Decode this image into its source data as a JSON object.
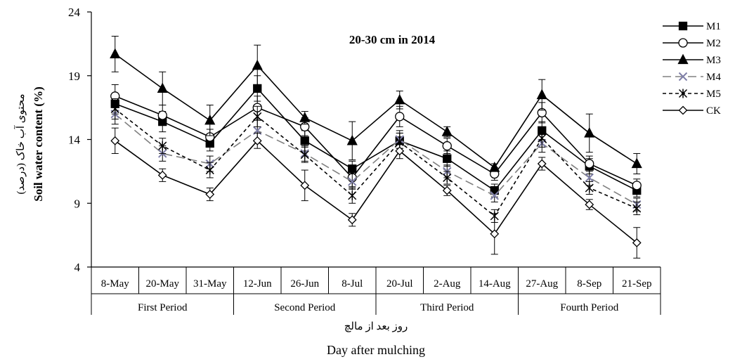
{
  "chart_data": {
    "type": "line",
    "title": "20-30 cm in 2014",
    "ylabel_fa": "محتوی آب خاک (درصد)",
    "ylabel": "Soil water content (%)",
    "xlabel_fa": "روز بعد از مالچ",
    "xlabel": "Day after mulching",
    "ylim": [
      4,
      24
    ],
    "yticks": [
      4,
      9,
      14,
      19,
      24
    ],
    "legend_position": "top-right",
    "grid": false,
    "categories": [
      "8-May",
      "20-May",
      "31-May",
      "12-Jun",
      "26-Jun",
      "8-Jul",
      "20-Jul",
      "2-Aug",
      "14-Aug",
      "27-Aug",
      "8-Sep",
      "21-Sep"
    ],
    "groups": [
      {
        "label": "First Period",
        "count": 3
      },
      {
        "label": "Second Period",
        "count": 3
      },
      {
        "label": "Third Period",
        "count": 3
      },
      {
        "label": "Fourth Period",
        "count": 3
      }
    ],
    "series": [
      {
        "name": "M1",
        "marker": "square",
        "dash": "solid",
        "color": "#000000",
        "values": [
          16.8,
          15.4,
          13.7,
          18.0,
          13.9,
          11.7,
          13.9,
          12.5,
          10.0,
          14.7,
          11.9,
          10.0
        ],
        "errors": [
          0.8,
          0.8,
          0.6,
          1.0,
          0.8,
          0.6,
          0.6,
          0.6,
          0.5,
          0.7,
          0.6,
          0.5
        ]
      },
      {
        "name": "M2",
        "marker": "circle",
        "dash": "solid",
        "color": "#000000",
        "values": [
          17.4,
          15.9,
          14.2,
          16.5,
          15.0,
          11.0,
          15.8,
          13.5,
          11.3,
          16.1,
          12.1,
          10.4
        ],
        "errors": [
          0.9,
          0.8,
          0.6,
          0.9,
          0.7,
          0.7,
          0.8,
          0.6,
          0.5,
          0.8,
          0.6,
          0.5
        ]
      },
      {
        "name": "M3",
        "marker": "triangle",
        "dash": "solid",
        "color": "#000000",
        "values": [
          20.7,
          18.0,
          15.5,
          19.8,
          15.7,
          13.9,
          17.1,
          14.6,
          11.8,
          17.5,
          14.5,
          12.1
        ],
        "errors": [
          1.4,
          1.3,
          1.2,
          1.6,
          0.5,
          1.5,
          0.7,
          0.4,
          0.3,
          1.2,
          1.5,
          0.8
        ]
      },
      {
        "name": "M4",
        "marker": "x",
        "dash": "longdash",
        "color": "#808080",
        "values": [
          16.0,
          12.9,
          12.1,
          14.7,
          12.9,
          10.7,
          14.0,
          11.5,
          9.6,
          13.7,
          11.0,
          8.9
        ],
        "errors": [
          0.8,
          0.6,
          0.6,
          0.8,
          0.6,
          0.6,
          0.7,
          0.5,
          0.5,
          0.7,
          0.6,
          0.5
        ]
      },
      {
        "name": "M5",
        "marker": "asterisk",
        "dash": "shortdash",
        "color": "#000000",
        "values": [
          16.4,
          13.5,
          11.6,
          15.8,
          12.8,
          9.6,
          13.8,
          11.0,
          8.0,
          14.1,
          10.2,
          8.6
        ],
        "errors": [
          0.8,
          0.6,
          0.6,
          0.8,
          0.6,
          0.6,
          0.7,
          0.5,
          0.5,
          0.7,
          0.5,
          0.5
        ]
      },
      {
        "name": "CK",
        "marker": "diamond",
        "dash": "solid",
        "color": "#000000",
        "values": [
          13.9,
          11.2,
          9.7,
          13.9,
          10.4,
          7.7,
          13.1,
          10.0,
          6.6,
          12.1,
          8.9,
          5.9
        ],
        "errors": [
          1.0,
          0.5,
          0.5,
          0.6,
          1.2,
          0.5,
          0.6,
          0.4,
          1.6,
          0.5,
          0.4,
          1.2
        ]
      }
    ]
  }
}
